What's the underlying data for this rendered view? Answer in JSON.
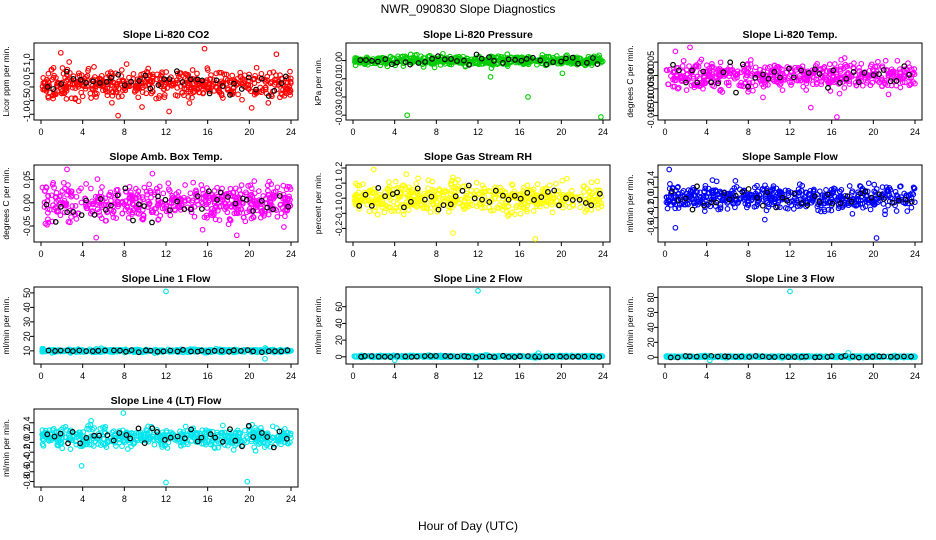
{
  "figure": {
    "title": "NWR_090830  Slope Diagnostics",
    "xlabel": "Hour of Day (UTC)"
  },
  "colors": {
    "red": "#ff0000",
    "green": "#00cc00",
    "magenta": "#ff00ff",
    "yellow": "#ffff00",
    "blue": "#0000ff",
    "cyan": "#00e5ee",
    "black": "#000000"
  },
  "chart_data": [
    {
      "type": "scatter",
      "title": "Slope Li-820 CO2",
      "ylabel": "Licor ppm per min.",
      "xlim": [
        0,
        24
      ],
      "xticks": [
        0,
        4,
        8,
        12,
        16,
        20,
        24
      ],
      "ylim": [
        -1.1,
        1.5
      ],
      "yticks": [
        -1.0,
        -0.5,
        0.0,
        0.5,
        1.0
      ],
      "ytick_labels": [
        "-1.0",
        "-0.5",
        "0.0",
        "0.5",
        "1.0"
      ],
      "color": "red",
      "center": 0.1,
      "spread": 0.45,
      "outliers": [
        [
          1.9,
          1.25
        ],
        [
          12.3,
          -0.9
        ],
        [
          15.7,
          1.4
        ],
        [
          22.6,
          1.2
        ],
        [
          7.4,
          -1.05
        ]
      ]
    },
    {
      "type": "scatter",
      "title": "Slope Li-820 Pressure",
      "ylabel": "kPa per min.",
      "xlim": [
        0,
        24
      ],
      "xticks": [
        0,
        4,
        8,
        12,
        16,
        20,
        24
      ],
      "ylim": [
        -0.031,
        0.008
      ],
      "yticks": [
        -0.03,
        -0.02,
        -0.01,
        0.0
      ],
      "ytick_labels": [
        "-0.03",
        "-0.02",
        "-0.01",
        "0.00"
      ],
      "color": "green",
      "center": 0.0,
      "spread": 0.0025,
      "outliers": [
        [
          5.2,
          -0.03
        ],
        [
          16.8,
          -0.02
        ],
        [
          23.8,
          -0.031
        ],
        [
          20.1,
          -0.007
        ],
        [
          13.2,
          -0.009
        ]
      ]
    },
    {
      "type": "scatter",
      "title": "Slope Li-820 Temp.",
      "ylabel": "degrees C per min.",
      "xlim": [
        0,
        24
      ],
      "xticks": [
        0,
        4,
        8,
        12,
        16,
        20,
        24
      ],
      "ylim": [
        -0.0155,
        0.011
      ],
      "yticks": [
        -0.015,
        -0.01,
        -0.005,
        0.0,
        0.005
      ],
      "ytick_labels": [
        "-0.015",
        "-0.010",
        "-0.005",
        "0.000",
        "0.005"
      ],
      "color": "magenta",
      "center": 0.0,
      "spread": 0.0045,
      "outliers": [
        [
          2.4,
          0.0105
        ],
        [
          1.0,
          0.009
        ],
        [
          16.5,
          -0.0155
        ],
        [
          14.0,
          -0.012
        ]
      ]
    },
    {
      "type": "scatter",
      "title": "Slope Amb. Box Temp.",
      "ylabel": "degrees C per min.",
      "xlim": [
        0,
        24
      ],
      "xticks": [
        0,
        4,
        8,
        12,
        16,
        20,
        24
      ],
      "ylim": [
        -0.078,
        0.075
      ],
      "yticks": [
        -0.05,
        0.0,
        0.05
      ],
      "ytick_labels": [
        "-0.05",
        "0.00",
        "0.05"
      ],
      "color": "magenta",
      "center": 0.0,
      "spread": 0.035,
      "outliers": [
        [
          2.5,
          0.072
        ],
        [
          5.3,
          -0.075
        ],
        [
          18.8,
          -0.07
        ]
      ]
    },
    {
      "type": "scatter",
      "title": "Slope Gas Stream RH",
      "ylabel": "percent per min.",
      "xlim": [
        0,
        24
      ],
      "xticks": [
        0,
        4,
        8,
        12,
        16,
        20,
        24
      ],
      "ylim": [
        -0.27,
        0.2
      ],
      "yticks": [
        -0.2,
        -0.1,
        0.0,
        0.1,
        0.2
      ],
      "ytick_labels": [
        "-0.2",
        "-0.1",
        "0.0",
        "0.1",
        "0.2"
      ],
      "color": "yellow",
      "center": 0.0,
      "spread": 0.09,
      "outliers": [
        [
          9.6,
          -0.23
        ],
        [
          17.5,
          -0.27
        ],
        [
          2.0,
          0.19
        ]
      ]
    },
    {
      "type": "scatter",
      "title": "Slope Sample Flow",
      "ylabel": "ml/min per min.",
      "xlim": [
        0,
        24
      ],
      "xticks": [
        0,
        4,
        8,
        12,
        16,
        20,
        24
      ],
      "ylim": [
        -0.82,
        0.58
      ],
      "yticks": [
        -0.6,
        -0.4,
        -0.2,
        0.0,
        0.2,
        0.4
      ],
      "ytick_labels": [
        "-0.6",
        "-0.4",
        "-0.2",
        "0.0",
        "0.2",
        "0.4"
      ],
      "color": "blue",
      "center": 0.0,
      "spread": 0.22,
      "outliers": [
        [
          0.4,
          0.55
        ],
        [
          20.3,
          -0.8
        ],
        [
          1.0,
          -0.6
        ]
      ]
    },
    {
      "type": "scatter",
      "title": "Slope Line 1 Flow",
      "ylabel": "ml/min per min.",
      "xlim": [
        0,
        24
      ],
      "xticks": [
        0,
        4,
        8,
        12,
        16,
        20,
        24
      ],
      "ylim": [
        3,
        52
      ],
      "yticks": [
        10,
        20,
        30,
        40,
        50
      ],
      "ytick_labels": [
        "10",
        "20",
        "30",
        "40",
        "50"
      ],
      "color": "cyan",
      "center": 10,
      "spread": 0.9,
      "outliers": [
        [
          12.0,
          51
        ],
        [
          21.5,
          4.5
        ]
      ]
    },
    {
      "type": "scatter",
      "title": "Slope Line 2 Flow",
      "ylabel": "ml/min per min.",
      "xlim": [
        0,
        24
      ],
      "xticks": [
        0,
        4,
        8,
        12,
        16,
        20,
        24
      ],
      "ylim": [
        -5,
        80
      ],
      "yticks": [
        0,
        20,
        40,
        60
      ],
      "ytick_labels": [
        "0",
        "20",
        "40",
        "60"
      ],
      "color": "cyan",
      "center": 0.5,
      "spread": 1.0,
      "outliers": [
        [
          12.0,
          79
        ],
        [
          17.8,
          4.5
        ],
        [
          4.0,
          -4
        ]
      ]
    },
    {
      "type": "scatter",
      "title": "Slope Line 3 Flow",
      "ylabel": "ml/min per min.",
      "xlim": [
        0,
        24
      ],
      "xticks": [
        0,
        4,
        8,
        12,
        16,
        20,
        24
      ],
      "ylim": [
        -5,
        90
      ],
      "yticks": [
        0,
        20,
        40,
        60,
        80
      ],
      "ytick_labels": [
        "0",
        "20",
        "40",
        "60",
        "80"
      ],
      "color": "cyan",
      "center": 0.8,
      "spread": 1.0,
      "outliers": [
        [
          12.0,
          88
        ],
        [
          17.6,
          6
        ],
        [
          4.3,
          -4
        ]
      ]
    },
    {
      "type": "scatter",
      "title": "Slope Line 4 (LT) Flow",
      "ylabel": "ml/min per min.",
      "xlim": [
        0,
        24
      ],
      "xticks": [
        0,
        4,
        8,
        12,
        16,
        20,
        24
      ],
      "ylim": [
        -0.85,
        0.62
      ],
      "yticks": [
        -0.8,
        -0.6,
        -0.4,
        -0.2,
        0.0,
        0.2,
        0.4
      ],
      "ytick_labels": [
        "-0.8",
        "-0.6",
        "-0.4",
        "-0.2",
        "0.0",
        "0.2",
        "0.4"
      ],
      "color": "cyan",
      "center": 0.1,
      "spread": 0.18,
      "outliers": [
        [
          12.0,
          -0.82
        ],
        [
          19.8,
          -0.8
        ],
        [
          7.9,
          0.6
        ],
        [
          3.9,
          -0.48
        ]
      ]
    }
  ]
}
